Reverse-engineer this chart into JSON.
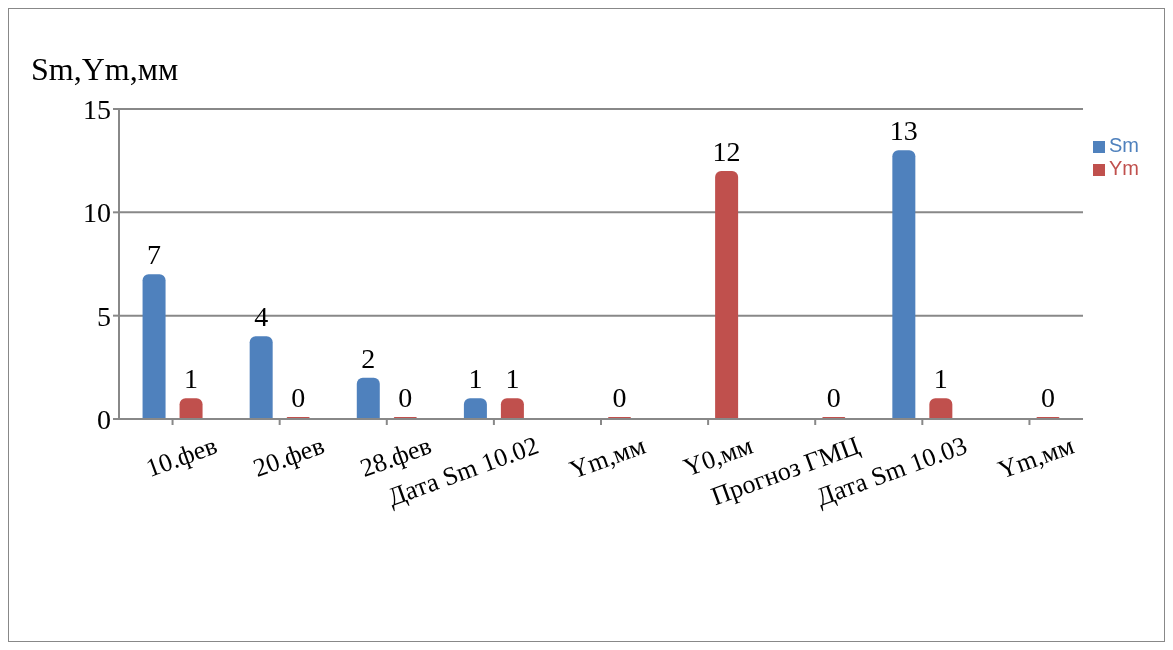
{
  "chart_data": {
    "type": "bar",
    "ylabel": "Sm,Ym,мм",
    "categories": [
      "10.фев",
      "20.фев",
      "28.фев",
      "Дата Sm 10.02",
      "Ym,мм",
      "Y0,мм",
      "Прогноз ГМЦ",
      "Дата Sm 10.03",
      "Ym,мм"
    ],
    "series": [
      {
        "name": "Sm",
        "color": "#4f81bd",
        "values": [
          7,
          4,
          2,
          1,
          null,
          null,
          null,
          13,
          null
        ]
      },
      {
        "name": "Ym",
        "color": "#c0504d",
        "values": [
          1,
          0,
          0,
          1,
          0,
          12,
          0,
          1,
          0
        ]
      }
    ],
    "ylim": [
      0,
      15
    ],
    "yticks": [
      0,
      5,
      10,
      15
    ],
    "grid": "y",
    "legend": "right",
    "data_labels": true
  }
}
